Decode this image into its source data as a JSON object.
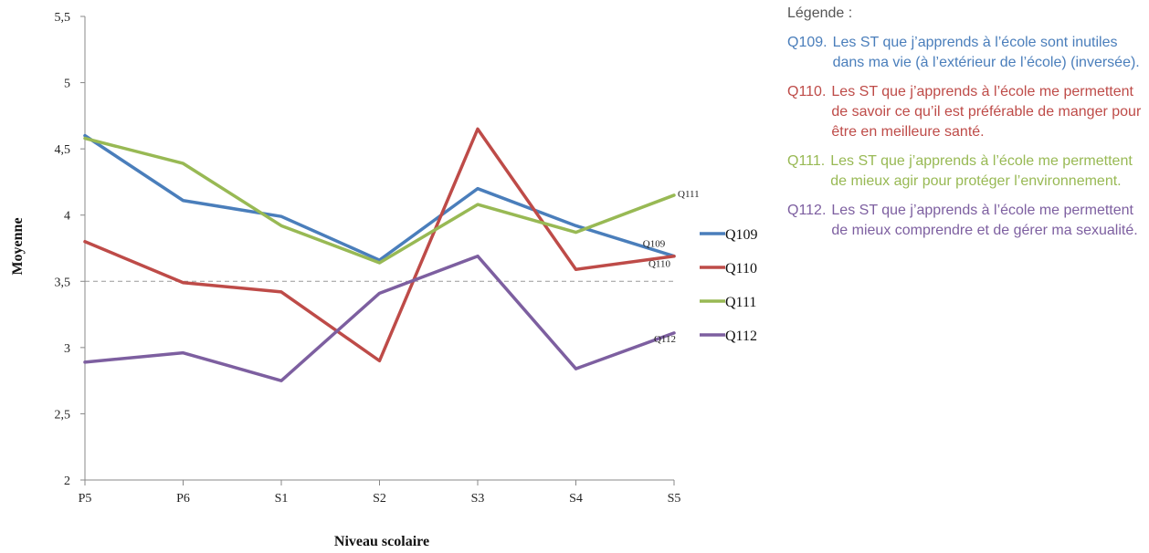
{
  "chart_data": {
    "type": "line",
    "categories": [
      "P5",
      "P6",
      "S1",
      "S2",
      "S3",
      "S4",
      "S5"
    ],
    "ylim": [
      2,
      5.5
    ],
    "yticks": [
      "2",
      "2,5",
      "3",
      "3,5",
      "4",
      "4,5",
      "5",
      "5,5"
    ],
    "reference_line": 3.5,
    "xlabel": "Niveau scolaire",
    "ylabel": "Moyenne",
    "legend_position": "right",
    "series": [
      {
        "name": "Q109",
        "color": "#4a7ebb",
        "values": [
          4.6,
          4.11,
          3.99,
          3.66,
          4.2,
          3.92,
          3.69
        ]
      },
      {
        "name": "Q110",
        "color": "#be4b48",
        "values": [
          3.8,
          3.49,
          3.42,
          2.9,
          4.65,
          3.59,
          3.69
        ]
      },
      {
        "name": "Q111",
        "color": "#98b954",
        "values": [
          4.58,
          4.39,
          3.92,
          3.64,
          4.08,
          3.87,
          4.15
        ]
      },
      {
        "name": "Q112",
        "color": "#7d5fa0",
        "values": [
          2.89,
          2.96,
          2.75,
          3.41,
          3.69,
          2.84,
          3.11
        ]
      }
    ]
  },
  "notes": {
    "title": "Légende :",
    "items": [
      {
        "code": "Q109.",
        "text": "Les ST que j’apprends à l’école sont inutiles dans ma vie (à l’extérieur de l’école) (inversée).",
        "color": "#4a7ebb"
      },
      {
        "code": "Q110.",
        "text": "Les ST que j’apprends à l’école me permettent de savoir ce qu’il est préférable de manger pour être en meilleure santé.",
        "color": "#be4b48"
      },
      {
        "code": "Q111.",
        "text": "Les ST que j’apprends à l’école me permettent de mieux agir pour protéger l’environnement.",
        "color": "#98b954"
      },
      {
        "code": "Q112.",
        "text": "Les ST que j’apprends à l’école me permettent de mieux comprendre et de gérer ma sexualité.",
        "color": "#7d5fa0"
      }
    ]
  }
}
